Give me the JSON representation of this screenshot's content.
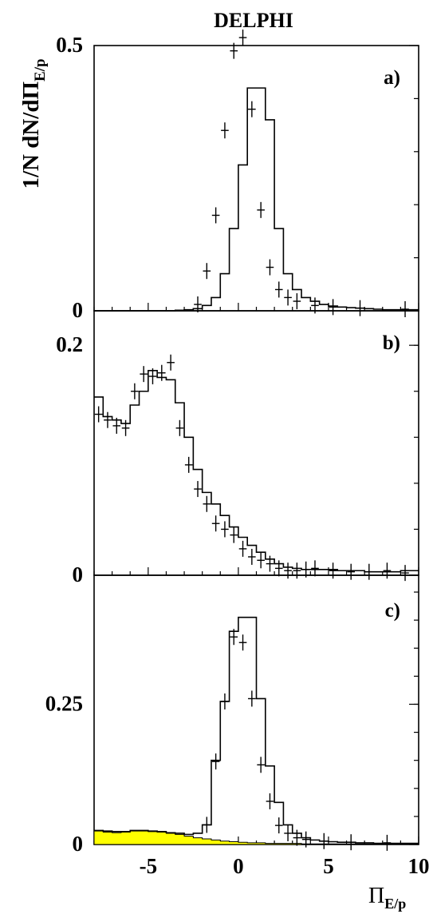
{
  "figure_title": "DELPHI",
  "y_axis_label": {
    "main": "1/N dN/dΠ",
    "sub": "E/p"
  },
  "x_axis_label": {
    "main": "Π",
    "sub": "E/p"
  },
  "shared_x": {
    "xlim": [
      -8,
      10
    ],
    "ticks": [
      "-5",
      "0",
      "5",
      "10"
    ],
    "tick_values": [
      -5,
      0,
      5,
      10
    ],
    "bin_edges": [
      -8,
      -7.5,
      -7,
      -6.5,
      -6,
      -5.5,
      -5,
      -4.5,
      -4,
      -3.5,
      -3,
      -2.5,
      -2,
      -1.5,
      -1,
      -0.5,
      0,
      0.5,
      1,
      1.5,
      2,
      2.5,
      3,
      3.5,
      4,
      4.5,
      5,
      5.5,
      6,
      6.5,
      7,
      7.5,
      8,
      8.5,
      9,
      9.5,
      10
    ]
  },
  "chart_data": [
    {
      "type": "histogram",
      "panel_label": "a)",
      "ylim": [
        0,
        0.5
      ],
      "y_ticks": [
        "0.5",
        "0"
      ],
      "y_tick_values": [
        0.5,
        0
      ],
      "series": [
        {
          "kind": "simulation-histogram",
          "values": [
            0,
            0,
            0,
            0,
            0,
            0,
            0,
            0,
            0,
            0.001,
            0.002,
            0.004,
            0.01,
            0.025,
            0.07,
            0.155,
            0.275,
            0.42,
            0.42,
            0.36,
            0.155,
            0.07,
            0.04,
            0.025,
            0.018,
            0.012,
            0.009,
            0.007,
            0.006,
            0.005,
            0.004,
            0.003,
            0.002,
            0.002,
            0.002,
            0.002
          ]
        },
        {
          "kind": "data-points",
          "points": [
            {
              "x": -2.25,
              "y": 0.012
            },
            {
              "x": -1.75,
              "y": 0.075
            },
            {
              "x": -1.25,
              "y": 0.18
            },
            {
              "x": -0.75,
              "y": 0.34
            },
            {
              "x": -0.25,
              "y": 0.49
            },
            {
              "x": 0.25,
              "y": 0.515
            },
            {
              "x": 0.75,
              "y": 0.38
            },
            {
              "x": 1.25,
              "y": 0.19
            },
            {
              "x": 1.75,
              "y": 0.082
            },
            {
              "x": 2.25,
              "y": 0.04
            },
            {
              "x": 2.75,
              "y": 0.025
            },
            {
              "x": 3.25,
              "y": 0.018
            },
            {
              "x": 4.25,
              "y": 0.01
            },
            {
              "x": 5.25,
              "y": 0.007
            },
            {
              "x": 6.75,
              "y": 0.005
            },
            {
              "x": 9.25,
              "y": 0.003
            }
          ]
        }
      ]
    },
    {
      "type": "histogram",
      "panel_label": "b)",
      "ylim": [
        0,
        0.23
      ],
      "y_ticks": [
        "0.2",
        "0"
      ],
      "y_tick_values": [
        0.2,
        0
      ],
      "series": [
        {
          "kind": "simulation-histogram",
          "values": [
            0.155,
            0.138,
            0.135,
            0.132,
            0.148,
            0.16,
            0.178,
            0.172,
            0.17,
            0.15,
            0.12,
            0.092,
            0.072,
            0.062,
            0.052,
            0.042,
            0.033,
            0.026,
            0.02,
            0.014,
            0.01,
            0.007,
            0.006,
            0.005,
            0.005,
            0.005,
            0.005,
            0.004,
            0.004,
            0.004,
            0.003,
            0.003,
            0.003,
            0.003,
            0.004,
            0.004
          ]
        },
        {
          "kind": "data-points",
          "points": [
            {
              "x": -7.75,
              "y": 0.14
            },
            {
              "x": -7.25,
              "y": 0.135
            },
            {
              "x": -6.75,
              "y": 0.13
            },
            {
              "x": -6.25,
              "y": 0.128
            },
            {
              "x": -5.75,
              "y": 0.16
            },
            {
              "x": -5.25,
              "y": 0.175
            },
            {
              "x": -4.75,
              "y": 0.173
            },
            {
              "x": -4.25,
              "y": 0.176
            },
            {
              "x": -3.75,
              "y": 0.185
            },
            {
              "x": -3.25,
              "y": 0.128
            },
            {
              "x": -2.75,
              "y": 0.096
            },
            {
              "x": -2.25,
              "y": 0.075
            },
            {
              "x": -1.75,
              "y": 0.062
            },
            {
              "x": -1.25,
              "y": 0.045
            },
            {
              "x": -0.75,
              "y": 0.04
            },
            {
              "x": -0.25,
              "y": 0.035
            },
            {
              "x": 0.25,
              "y": 0.023
            },
            {
              "x": 0.75,
              "y": 0.016
            },
            {
              "x": 1.25,
              "y": 0.013
            },
            {
              "x": 1.75,
              "y": 0.01
            },
            {
              "x": 2.25,
              "y": 0.006
            },
            {
              "x": 2.75,
              "y": 0.004
            },
            {
              "x": 3.25,
              "y": 0.004
            },
            {
              "x": 3.75,
              "y": 0.005
            },
            {
              "x": 4.25,
              "y": 0.006
            },
            {
              "x": 5.25,
              "y": 0.004
            },
            {
              "x": 6.25,
              "y": 0.003
            },
            {
              "x": 7.25,
              "y": 0.003
            },
            {
              "x": 8.25,
              "y": 0.004
            },
            {
              "x": 9.25,
              "y": 0.002
            }
          ]
        }
      ]
    },
    {
      "type": "histogram",
      "panel_label": "c)",
      "ylim": [
        0,
        0.48
      ],
      "y_ticks": [
        "0.25",
        "0"
      ],
      "y_tick_values": [
        0.25,
        0
      ],
      "series": [
        {
          "kind": "simulation-histogram",
          "values": [
            0.025,
            0.024,
            0.023,
            0.023,
            0.025,
            0.025,
            0.024,
            0.023,
            0.021,
            0.02,
            0.018,
            0.02,
            0.035,
            0.15,
            0.255,
            0.38,
            0.405,
            0.405,
            0.26,
            0.14,
            0.075,
            0.035,
            0.02,
            0.012,
            0.008,
            0.006,
            0.005,
            0.004,
            0.004,
            0.003,
            0.003,
            0.002,
            0.002,
            0.002,
            0.002,
            0.002
          ]
        },
        {
          "kind": "background-filled",
          "color": "#ffff00",
          "values": [
            0.024,
            0.022,
            0.021,
            0.022,
            0.024,
            0.024,
            0.023,
            0.022,
            0.02,
            0.018,
            0.015,
            0.012,
            0.01,
            0.008,
            0.006,
            0.005,
            0.004,
            0.003,
            0.003,
            0.002,
            0.002,
            0.002,
            0.002,
            0.001,
            0.001,
            0.001,
            0.001,
            0.001,
            0.001,
            0.001,
            0.001,
            0.001,
            0.001,
            0.001,
            0.001,
            0.001
          ]
        },
        {
          "kind": "data-points",
          "points": [
            {
              "x": -1.75,
              "y": 0.035
            },
            {
              "x": -1.25,
              "y": 0.148
            },
            {
              "x": -0.75,
              "y": 0.255
            },
            {
              "x": -0.25,
              "y": 0.37
            },
            {
              "x": 0.25,
              "y": 0.36
            },
            {
              "x": 0.75,
              "y": 0.26
            },
            {
              "x": 1.25,
              "y": 0.142
            },
            {
              "x": 1.75,
              "y": 0.077
            },
            {
              "x": 2.25,
              "y": 0.034
            },
            {
              "x": 2.75,
              "y": 0.02
            },
            {
              "x": 3.25,
              "y": 0.012
            },
            {
              "x": 3.75,
              "y": 0.009
            },
            {
              "x": 4.75,
              "y": 0.006
            },
            {
              "x": 6.25,
              "y": 0.004
            },
            {
              "x": 8.25,
              "y": 0.003
            }
          ]
        }
      ]
    }
  ]
}
